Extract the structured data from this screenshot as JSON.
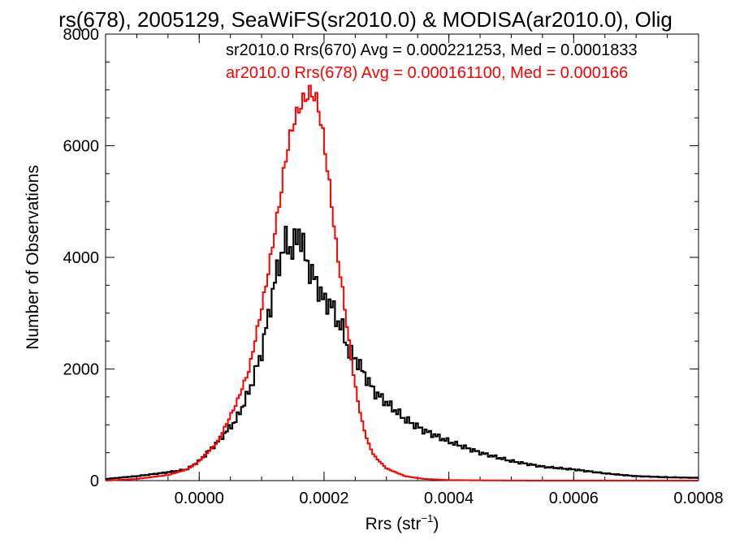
{
  "chart_data": {
    "type": "histogram",
    "title": "rs(678), 2005129, SeaWiFS(sr2010.0) & MODISA(ar2010.0), Olig",
    "xlabel_main": "Rrs (str",
    "xlabel_sup": "−1",
    "xlabel_close": ")",
    "ylabel": "Number of Observations",
    "xlim": [
      -0.00015,
      0.0008
    ],
    "ylim": [
      0,
      8000
    ],
    "x_ticks": [
      {
        "value": 0.0,
        "label": "0.0000"
      },
      {
        "value": 0.0002,
        "label": "0.0002"
      },
      {
        "value": 0.0004,
        "label": "0.0004"
      },
      {
        "value": 0.0006,
        "label": "0.0006"
      },
      {
        "value": 0.0008,
        "label": "0.0008"
      }
    ],
    "y_ticks": [
      {
        "value": 0,
        "label": "0"
      },
      {
        "value": 2000,
        "label": "2000"
      },
      {
        "value": 4000,
        "label": "4000"
      },
      {
        "value": 6000,
        "label": "6000"
      },
      {
        "value": 8000,
        "label": "8000"
      }
    ],
    "annotations": [
      {
        "text": "sr2010.0 Rrs(670) Avg = 0.000221253, Med = 0.0001833",
        "color": "#000000"
      },
      {
        "text": "ar2010.0 Rrs(678) Avg = 0.000161100, Med = 0.000166",
        "color": "#ff0000"
      }
    ],
    "series": [
      {
        "color": "#000000",
        "x": [
          -0.00015,
          -0.0001,
          -5e-05,
          -2e-05,
          0.0,
          3e-05,
          6e-05,
          8e-05,
          0.0001,
          0.00011,
          0.00012,
          0.00013,
          0.00014,
          0.00015,
          0.00016,
          0.00017,
          0.00018,
          0.00019,
          0.0002,
          0.00021,
          0.00022,
          0.00023,
          0.00024,
          0.00025,
          0.00026,
          0.00027,
          0.00028,
          0.0003,
          0.00033,
          0.00036,
          0.0004,
          0.00045,
          0.0005,
          0.00055,
          0.0006,
          0.00065,
          0.0007,
          0.00075,
          0.0008
        ],
        "y": [
          30,
          80,
          150,
          200,
          350,
          700,
          1100,
          1600,
          2300,
          2900,
          3500,
          4000,
          4300,
          4100,
          4500,
          4000,
          3700,
          3500,
          3200,
          3200,
          2900,
          2700,
          2300,
          2200,
          2000,
          1800,
          1600,
          1400,
          1100,
          900,
          700,
          500,
          350,
          250,
          200,
          130,
          80,
          60,
          50
        ]
      },
      {
        "color": "#ff0000",
        "x": [
          -0.00015,
          -0.0001,
          -5e-05,
          -2e-05,
          0.0,
          3e-05,
          6e-05,
          8e-05,
          0.0001,
          0.00011,
          0.00012,
          0.00013,
          0.00014,
          0.00015,
          0.00016,
          0.00017,
          0.00018,
          0.00019,
          0.0002,
          0.00021,
          0.00022,
          0.00023,
          0.00024,
          0.00025,
          0.00026,
          0.00027,
          0.00028,
          0.0003,
          0.00033,
          0.00036,
          0.0004,
          0.00045,
          0.0005,
          0.00055,
          0.0006,
          0.00065,
          0.0007,
          0.00075,
          0.0008
        ],
        "y": [
          0,
          30,
          100,
          200,
          350,
          700,
          1400,
          2000,
          3100,
          3700,
          4400,
          5100,
          5900,
          6400,
          6700,
          6900,
          7000,
          6800,
          6100,
          5200,
          4200,
          3400,
          2500,
          1700,
          1100,
          700,
          450,
          220,
          80,
          30,
          10,
          5,
          2,
          0,
          0,
          0,
          0,
          0,
          0
        ]
      }
    ]
  }
}
